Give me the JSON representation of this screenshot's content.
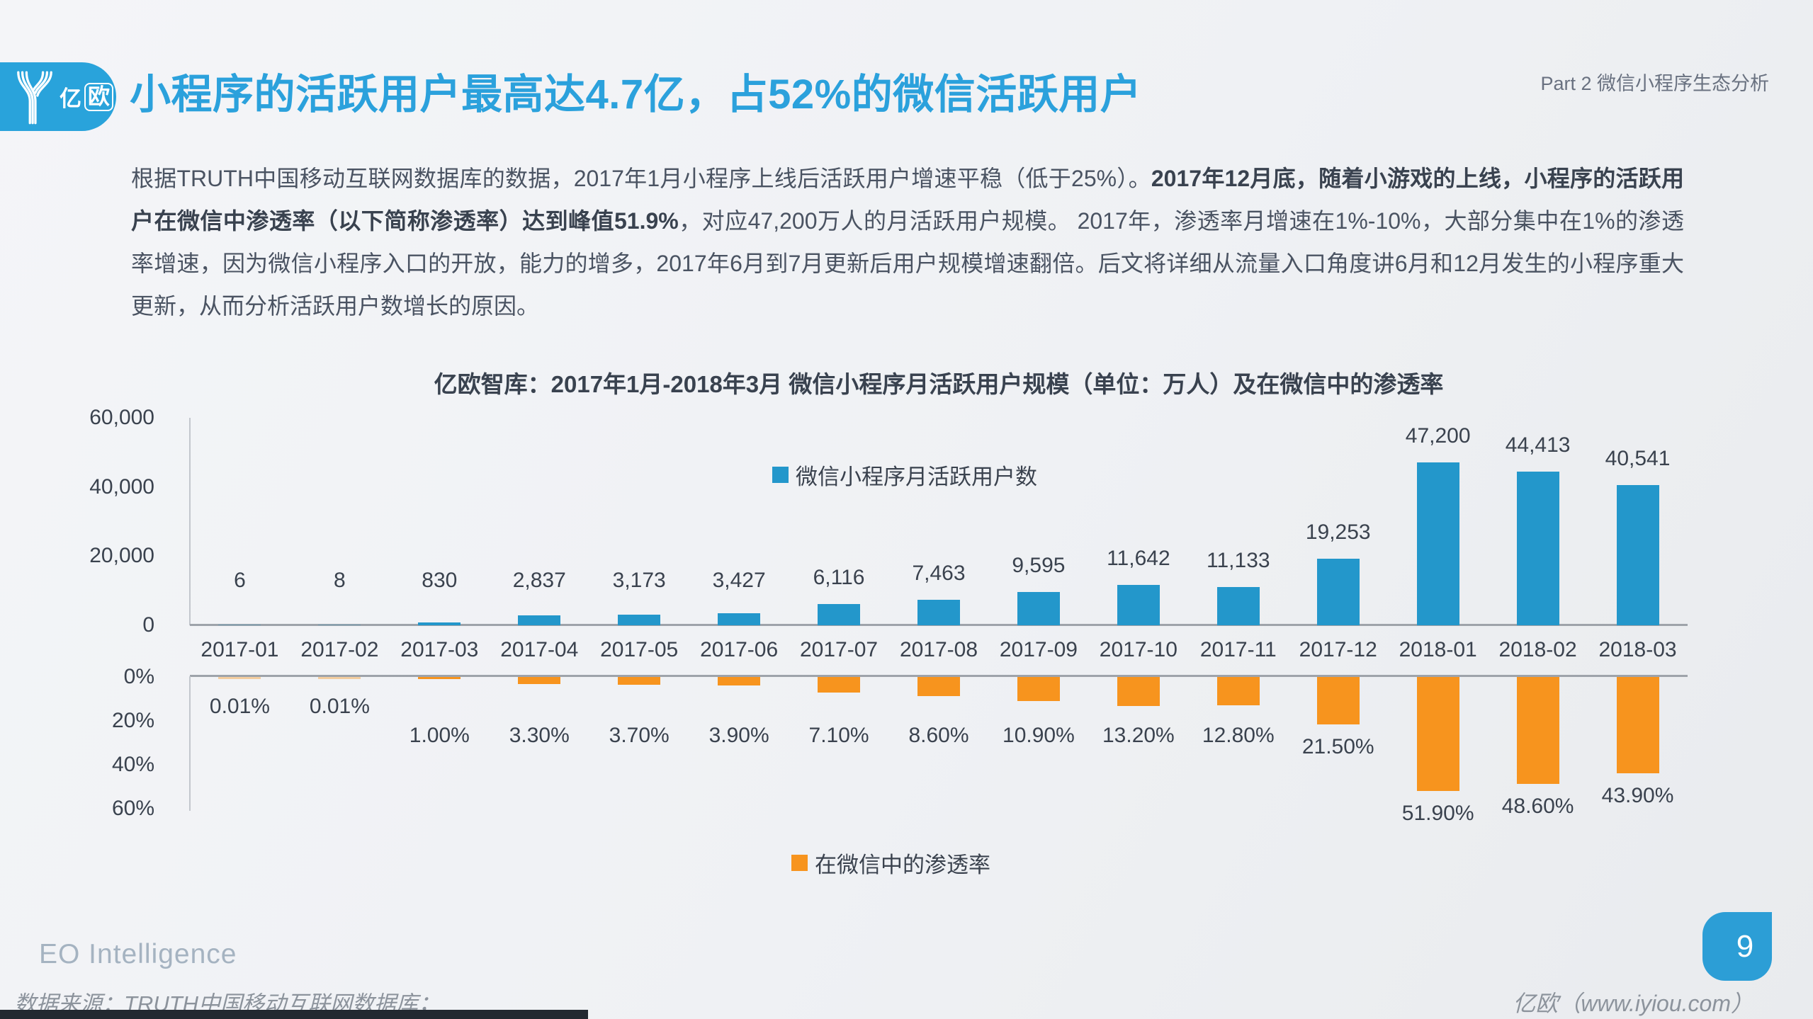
{
  "header": {
    "logo_text_1": "亿",
    "logo_text_2": "欧",
    "title": "小程序的活跃用户最高达4.7亿，占52%的微信活跃用户",
    "part_label": "Part 2 微信小程序生态分析"
  },
  "paragraph": {
    "normal_1": "根据TRUTH中国移动互联网数据库的数据，2017年1月小程序上线后活跃用户增速平稳（低于25%）。",
    "bold": "2017年12月底，随着小游戏的上线，小程序的活跃用户在微信中渗透率（以下简称渗透率）达到峰值51.9%",
    "normal_2": "，对应47,200万人的月活跃用户规模。 2017年，渗透率月增速在1%-10%，大部分集中在1%的渗透率增速，因为微信小程序入口的开放，能力的增多，2017年6月到7月更新后用户规模增速翻倍。后文将详细从流量入口角度讲6月和12月发生的小程序重大更新，从而分析活跃用户数增长的原因。"
  },
  "chart_data": {
    "type": "bar",
    "title": "亿欧智库：2017年1月-2018年3月 微信小程序月活跃用户规模（单位：万人）及在微信中的渗透率",
    "categories": [
      "2017-01",
      "2017-02",
      "2017-03",
      "2017-04",
      "2017-05",
      "2017-06",
      "2017-07",
      "2017-08",
      "2017-09",
      "2017-10",
      "2017-11",
      "2017-12",
      "2018-01",
      "2018-02",
      "2018-03"
    ],
    "series": [
      {
        "name": "微信小程序月活跃用户数",
        "unit": "万人",
        "color": "#2397cb",
        "values": [
          6,
          8,
          830,
          2837,
          3173,
          3427,
          6116,
          7463,
          9595,
          11642,
          11133,
          19253,
          47200,
          44413,
          40541
        ],
        "labels": [
          "6",
          "8",
          "830",
          "2,837",
          "3,173",
          "3,427",
          "6,116",
          "7,463",
          "9,595",
          "11,642",
          "11,133",
          "19,253",
          "47,200",
          "44,413",
          "40,541"
        ]
      },
      {
        "name": "在微信中的渗透率",
        "unit": "%",
        "color": "#f7941e",
        "values": [
          0.01,
          0.01,
          1.0,
          3.3,
          3.7,
          3.9,
          7.1,
          8.6,
          10.9,
          13.2,
          12.8,
          21.5,
          51.9,
          48.6,
          43.9
        ],
        "labels": [
          "0.01%",
          "0.01%",
          "1.00%",
          "3.30%",
          "3.70%",
          "3.90%",
          "7.10%",
          "8.60%",
          "10.90%",
          "13.20%",
          "12.80%",
          "21.50%",
          "51.90%",
          "48.60%",
          "43.90%"
        ]
      }
    ],
    "y_axis_mau": {
      "tick_labels": [
        "60,000",
        "40,000",
        "20,000",
        "0"
      ],
      "tick_values": [
        60000,
        40000,
        20000,
        0
      ],
      "max": 60000
    },
    "y_axis_pct": {
      "tick_labels": [
        "0%",
        "20%",
        "40%",
        "60%"
      ],
      "tick_values": [
        0,
        20,
        40,
        60
      ],
      "max": 60,
      "direction": "down"
    },
    "legend_position": "inside",
    "grid": false
  },
  "footer": {
    "brand": "EO Intelligence",
    "source": "数据来源：TRUTH中国移动互联网数据库；",
    "site": "亿欧（www.iyiou.com）",
    "page": "9"
  },
  "colors": {
    "accent_blue": "#2ba1dc",
    "bar_blue": "#2397cb",
    "bar_orange": "#f7941e",
    "text_dark": "#3a424e",
    "text_body": "#4a5362",
    "footer_gray": "#8c939c"
  }
}
